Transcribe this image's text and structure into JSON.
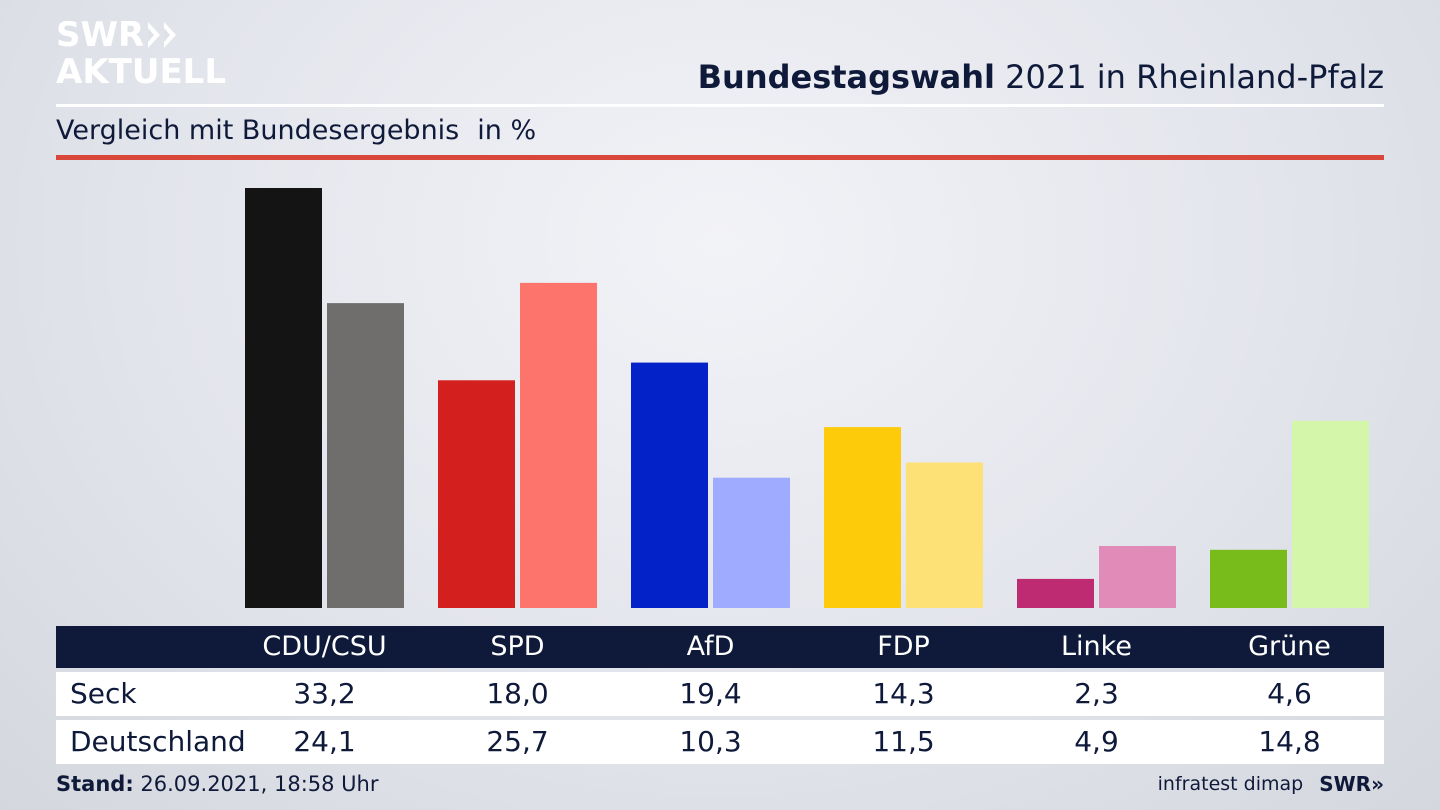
{
  "header": {
    "logo_line1": "SWR",
    "logo_line2": "AKTUELL",
    "title_bold": "Bundestagswahl",
    "title_rest": " 2021 in Rheinland-Pfalz",
    "subtitle": "Vergleich mit Bundesergebnis",
    "unit": "in %"
  },
  "colors": {
    "accent_rule": "#d9473b",
    "table_header": "#0f1a3a",
    "text": "#0f1a3a"
  },
  "chart_data": {
    "type": "bar",
    "categories": [
      "CDU/CSU",
      "SPD",
      "AfD",
      "FDP",
      "Linke",
      "Grüne"
    ],
    "series": [
      {
        "name": "Seck",
        "values": [
          33.2,
          18.0,
          19.4,
          14.3,
          2.3,
          4.6
        ],
        "colors": [
          "#141414",
          "#d41f1f",
          "#0323c8",
          "#fecb0a",
          "#bf2b73",
          "#78bc1b"
        ]
      },
      {
        "name": "Deutschland",
        "values": [
          24.1,
          25.7,
          10.3,
          11.5,
          4.9,
          14.8
        ],
        "colors": [
          "#6f6e6c",
          "#fd746d",
          "#9eabfe",
          "#fde076",
          "#e08bb8",
          "#d3f6aa"
        ]
      }
    ],
    "table_values": [
      [
        "33,2",
        "18,0",
        "19,4",
        "14,3",
        "2,3",
        "4,6"
      ],
      [
        "24,1",
        "25,7",
        "10,3",
        "11,5",
        "4,9",
        "14,8"
      ]
    ],
    "ylim": [
      0,
      33.2
    ],
    "grid": false,
    "legend": "table below chart"
  },
  "footer": {
    "stand_label": "Stand:",
    "stand_value": " 26.09.2021, 18:58 Uhr",
    "source": "infratest dimap",
    "brand": "SWR"
  }
}
